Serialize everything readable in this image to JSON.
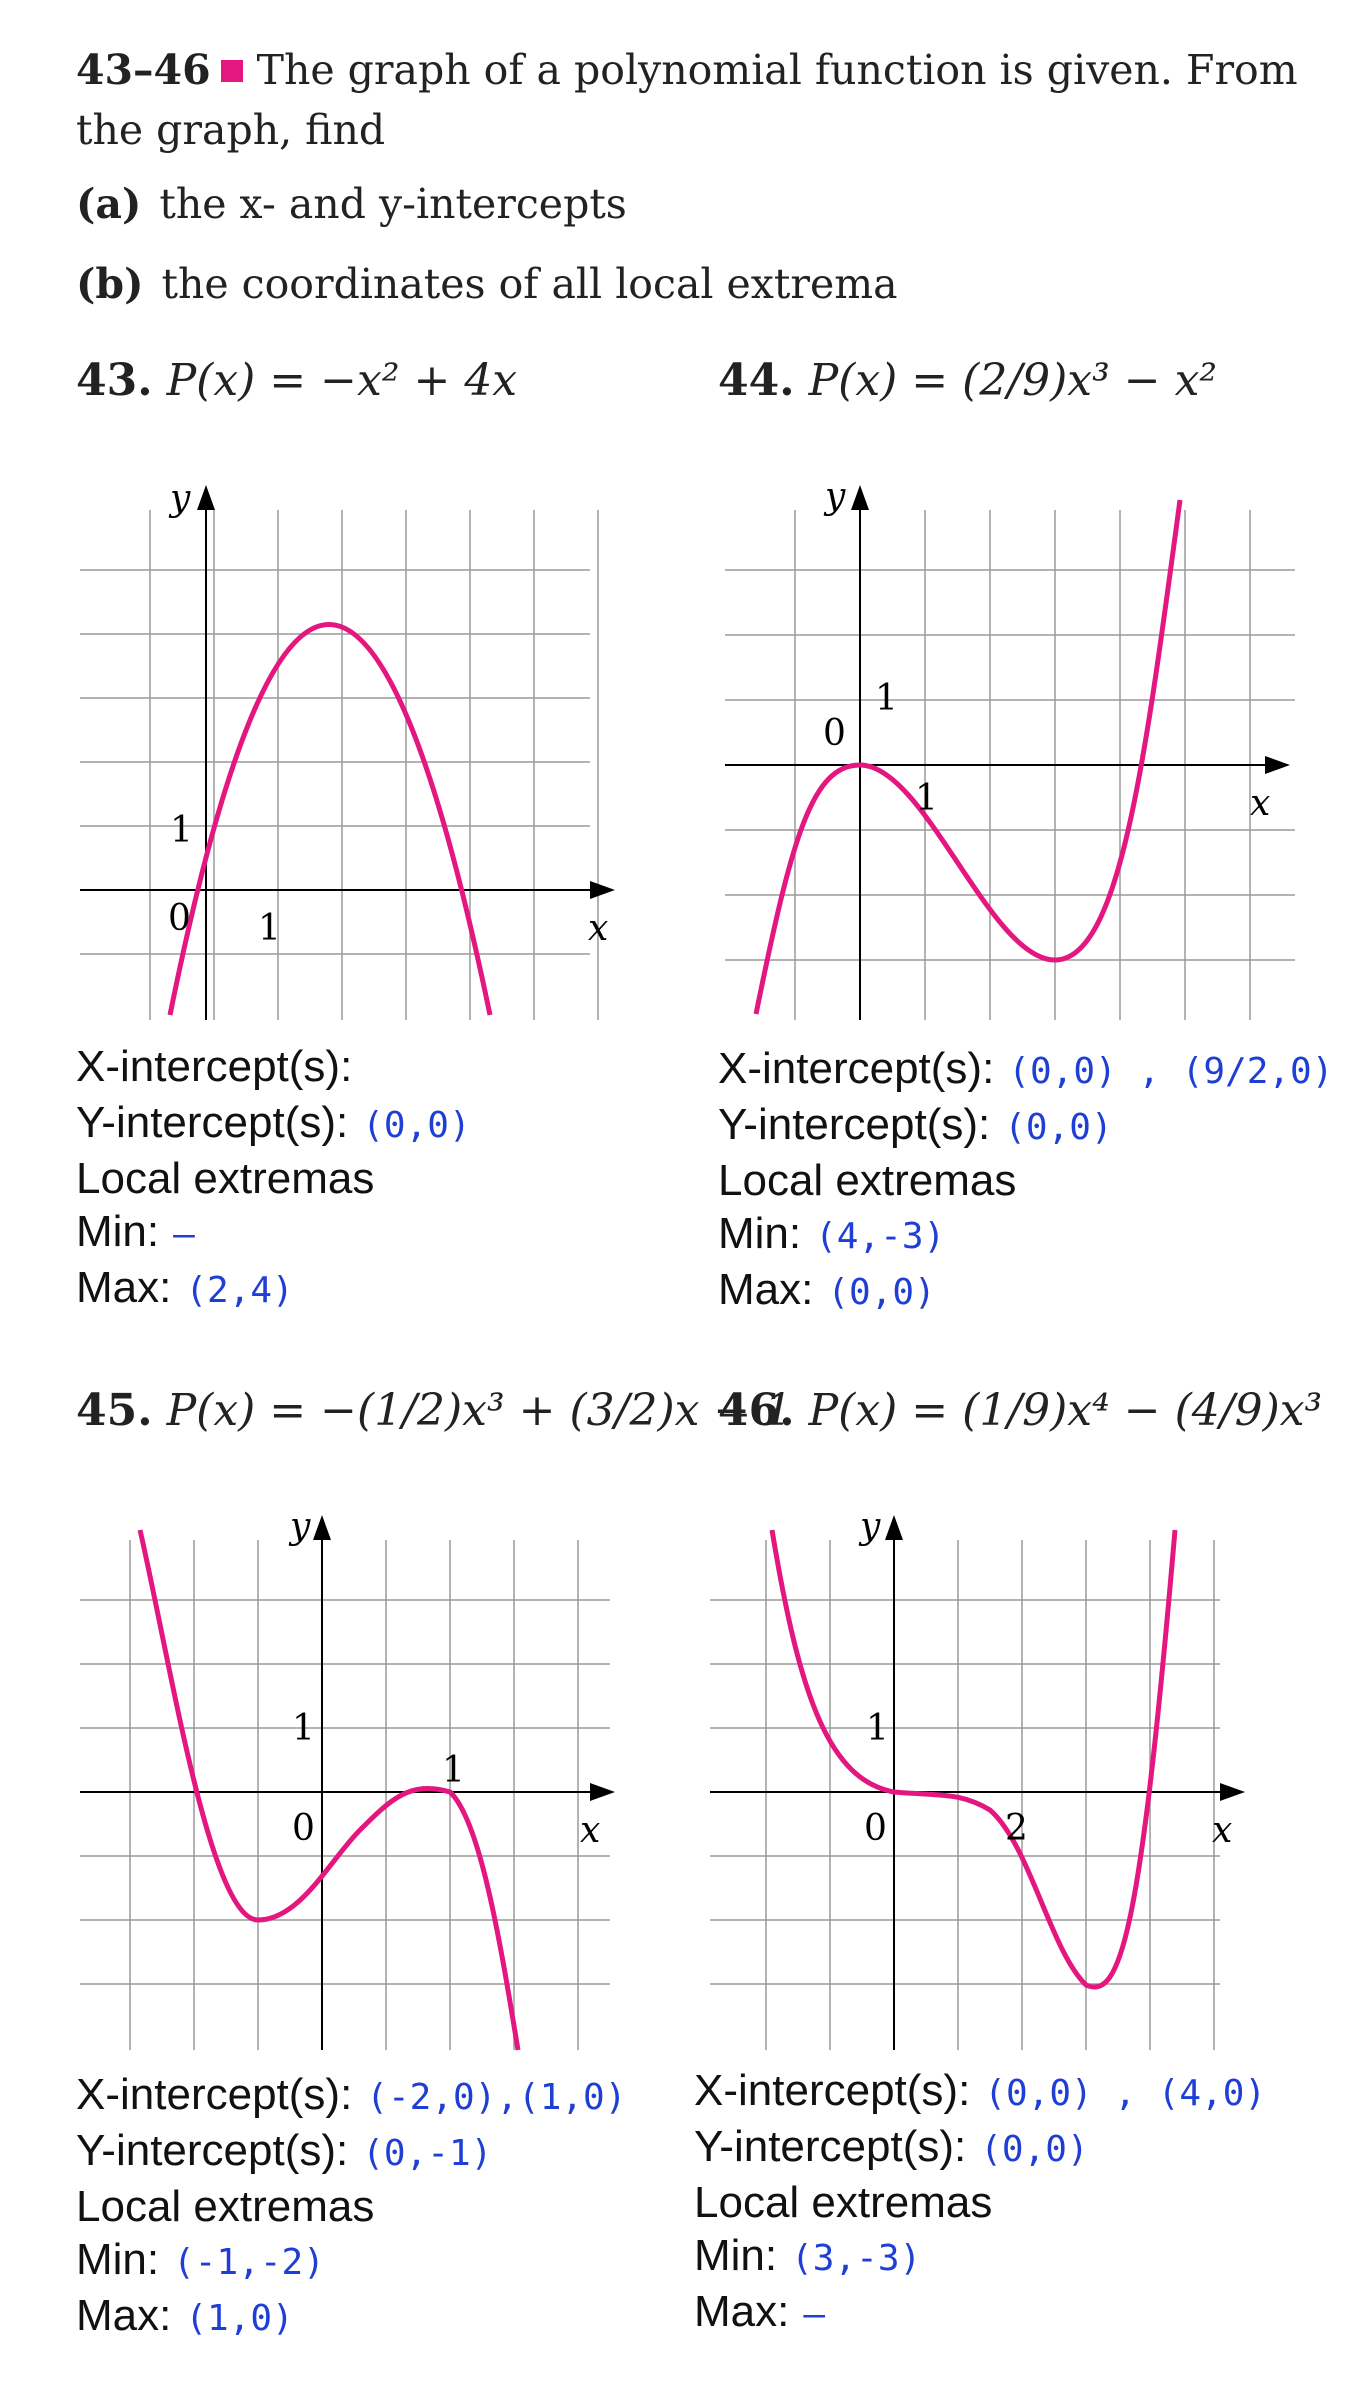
{
  "header": {
    "range": "43–46",
    "text": "The graph of a polynomial function is given. From the graph, find",
    "parts": [
      {
        "label": "(a)",
        "text": "the x- and y-intercepts"
      },
      {
        "label": "(b)",
        "text": "the coordinates of all local extrema"
      }
    ]
  },
  "colors": {
    "curve": "#e3177f",
    "grid": "#9a9a9a",
    "handwriting": "#1e3ed6"
  },
  "labels": {
    "x_intercepts": "X-intercept(s):",
    "y_intercepts": "Y-intercept(s):",
    "local_extremas": "Local extremas",
    "min": "Min:",
    "max": "Max:"
  },
  "problems": [
    {
      "number": "43.",
      "function": "P(x) = −x² + 4x",
      "graph": {
        "origin_label": "0",
        "x_tick_label": "1",
        "y_tick_label": "1",
        "x_axis": "x",
        "y_axis": "y"
      },
      "answers": {
        "x_intercepts": "",
        "y_intercepts": "(0,0)",
        "min": "–",
        "max": "(2,4)"
      }
    },
    {
      "number": "44.",
      "function": "P(x) = (2/9)x³ − x²",
      "graph": {
        "origin_label": "0",
        "x_tick_label": "1",
        "y_tick_label": "1",
        "x_axis": "x",
        "y_axis": "y"
      },
      "answers": {
        "x_intercepts": "(0,0) , (9/2,0)",
        "y_intercepts": "(0,0)",
        "min": "(4,-3)",
        "max": "(0,0)"
      }
    },
    {
      "number": "45.",
      "function": "P(x) = −(1/2)x³ + (3/2)x − 1",
      "graph": {
        "origin_label": "0",
        "x_tick_label": "1",
        "y_tick_label": "1",
        "x_axis": "x",
        "y_axis": "y"
      },
      "answers": {
        "x_intercepts": "(-2,0),(1,0)",
        "y_intercepts": "(0,-1)",
        "min": "(-1,-2)",
        "max": "(1,0)"
      }
    },
    {
      "number": "46.",
      "function": "P(x) = (1/9)x⁴ − (4/9)x³",
      "graph": {
        "origin_label": "0",
        "x_tick_label": "2",
        "y_tick_label": "1",
        "x_axis": "x",
        "y_axis": "y"
      },
      "answers": {
        "x_intercepts": "(0,0) , (4,0)",
        "y_intercepts": "(0,0)",
        "min": "(3,-3)",
        "max": "–"
      }
    }
  ]
}
